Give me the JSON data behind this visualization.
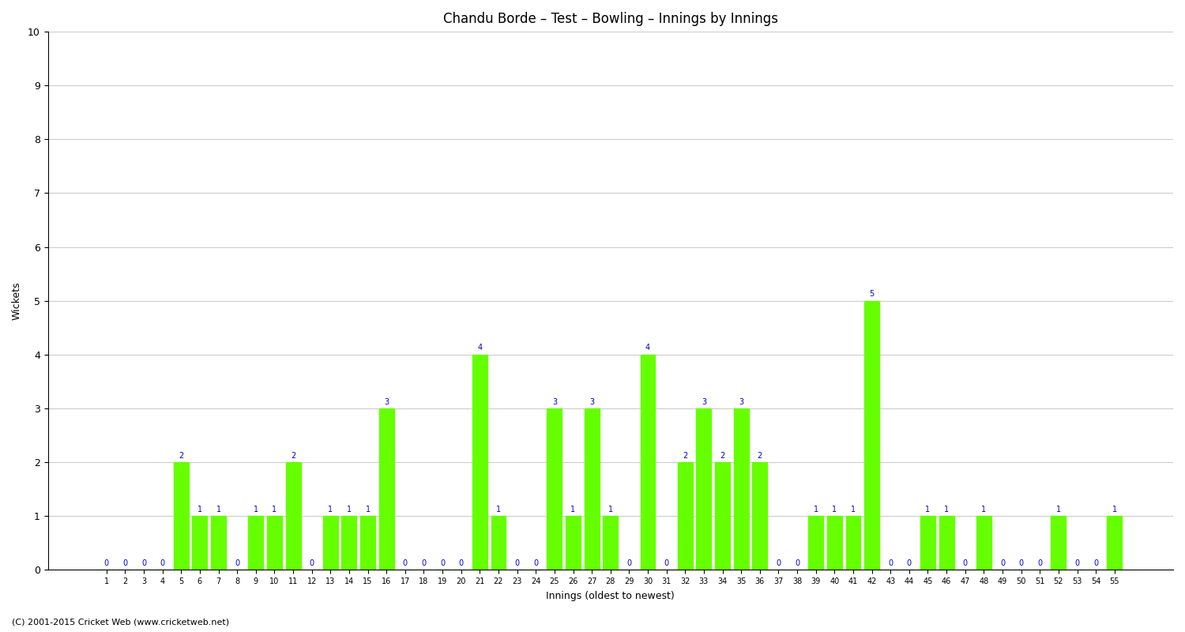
{
  "title": "Chandu Borde – Test – Bowling – Innings by Innings",
  "xlabel": "Innings (oldest to newest)",
  "ylabel": "Wickets",
  "footer": "(C) 2001-2015 Cricket Web (www.cricketweb.net)",
  "bar_color": "#66ff00",
  "label_color": "#0000cc",
  "background_color": "#ffffff",
  "ylim": [
    0,
    10
  ],
  "yticks": [
    0,
    1,
    2,
    3,
    4,
    5,
    6,
    7,
    8,
    9,
    10
  ],
  "categories": [
    "1",
    "2",
    "3",
    "4",
    "5",
    "6",
    "7",
    "8",
    "9",
    "10",
    "11",
    "12",
    "13",
    "14",
    "15",
    "16",
    "17",
    "18",
    "19",
    "20",
    "21",
    "22",
    "23",
    "24",
    "25",
    "26",
    "27",
    "28",
    "29",
    "30",
    "31",
    "32",
    "33",
    "34",
    "35",
    "36",
    "37",
    "38",
    "39",
    "40",
    "41",
    "42",
    "43",
    "44",
    "45",
    "46",
    "47",
    "48",
    "49",
    "50",
    "51",
    "52",
    "53",
    "54",
    "55"
  ],
  "values": [
    0,
    0,
    0,
    0,
    2,
    1,
    1,
    0,
    1,
    1,
    2,
    0,
    1,
    1,
    1,
    3,
    0,
    0,
    0,
    0,
    4,
    1,
    0,
    0,
    3,
    1,
    3,
    1,
    0,
    4,
    0,
    2,
    3,
    2,
    3,
    2,
    0,
    0,
    1,
    1,
    1,
    5,
    0,
    0,
    1,
    1,
    0,
    1,
    0,
    0,
    0,
    1,
    0,
    0,
    1
  ]
}
